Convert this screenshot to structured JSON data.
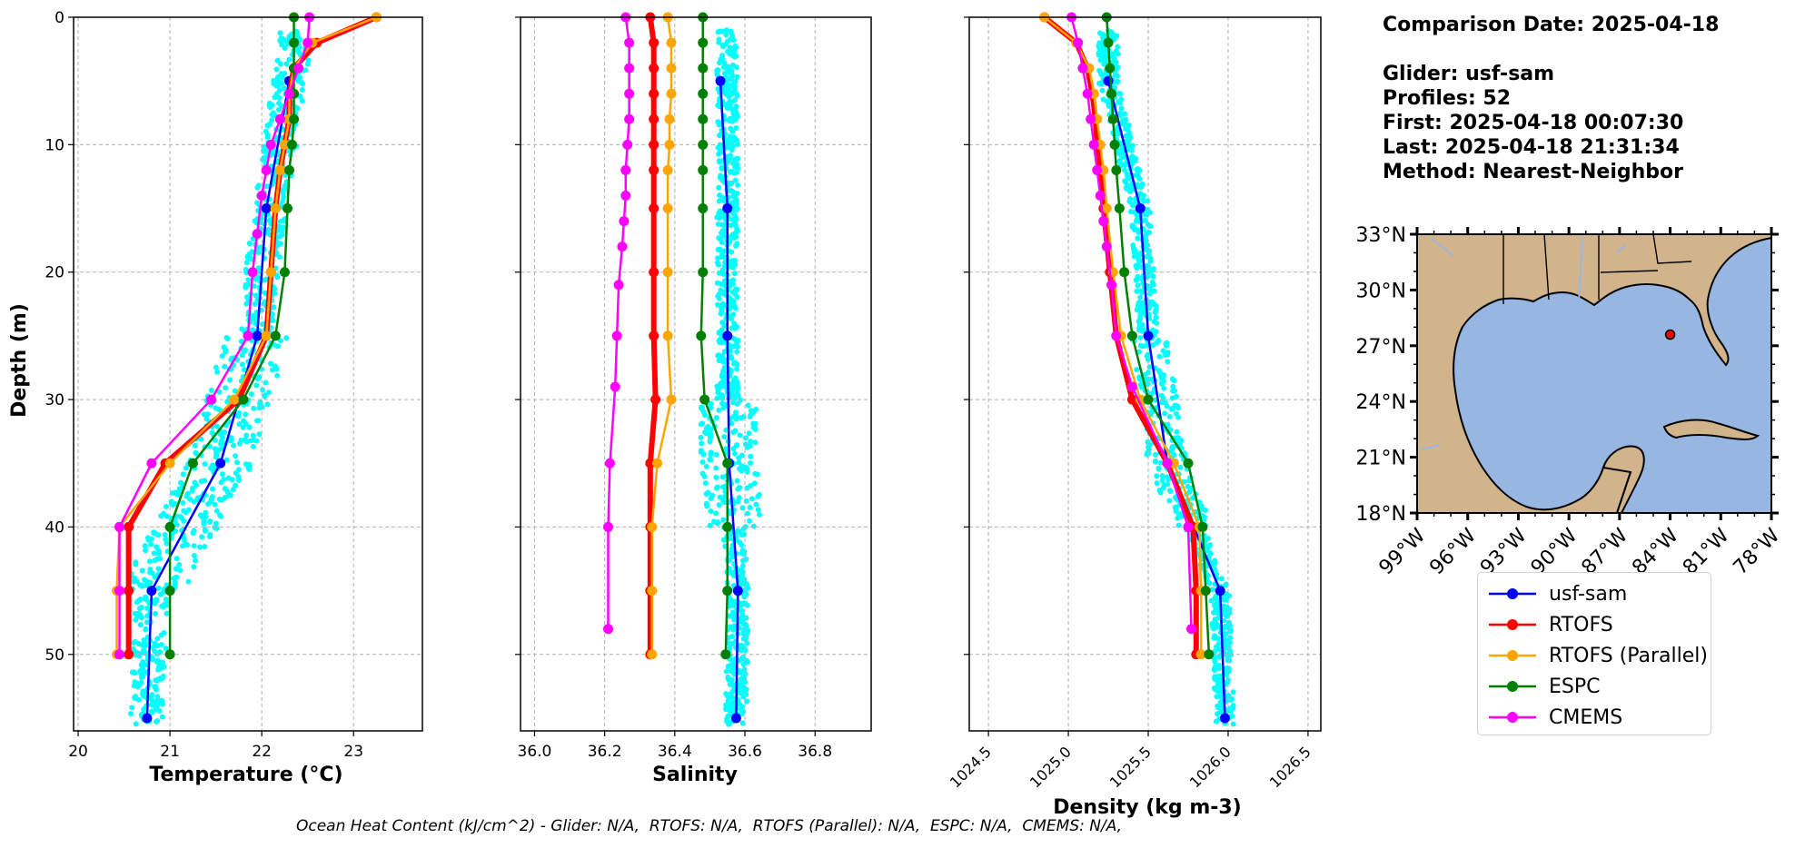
{
  "info": {
    "date_line": "Comparison Date: 2025-04-18",
    "glider_line": "Glider: usf-sam",
    "profiles_line": "Profiles: 52",
    "first_line": "First: 2025-04-18 00:07:30",
    "last_line": "Last: 2025-04-18 21:31:34",
    "method_line": "Method: Nearest-Neighbor"
  },
  "footer": "Ocean Heat Content (kJ/cm^2) - Glider: N/A,  RTOFS: N/A,  RTOFS (Parallel): N/A,  ESPC: N/A,  CMEMS: N/A,",
  "colors": {
    "usf-sam": "#0000ff",
    "RTOFS": "#ff0000",
    "RTOFS (Parallel)": "#ffa500",
    "ESPC": "#008000",
    "CMEMS": "#ff00ff",
    "glider_scatter": "#00ffff",
    "land": "#d2b48c",
    "ocean": "#97b6e1"
  },
  "legend": [
    "usf-sam",
    "RTOFS",
    "RTOFS (Parallel)",
    "ESPC",
    "CMEMS"
  ],
  "chart_data": [
    {
      "type": "line",
      "xlabel": "Temperature (°C)",
      "ylabel": "Depth (m)",
      "xlim": [
        19.95,
        23.75
      ],
      "ylim": [
        56,
        0
      ],
      "xticks": [
        20,
        21,
        22,
        23
      ],
      "yticks": [
        0,
        10,
        20,
        30,
        40,
        50
      ],
      "grid": true,
      "series": [
        {
          "name": "usf-sam",
          "depth": [
            5,
            15,
            25,
            35,
            45,
            55
          ],
          "values": [
            22.3,
            22.05,
            21.95,
            21.55,
            20.8,
            20.75
          ]
        },
        {
          "name": "RTOFS",
          "depth": [
            0,
            2,
            4,
            6,
            8,
            10,
            12,
            15,
            20,
            25,
            30,
            35,
            40,
            45,
            50
          ],
          "values": [
            23.25,
            22.6,
            22.35,
            22.3,
            22.3,
            22.25,
            22.2,
            22.15,
            22.1,
            22.05,
            21.75,
            20.95,
            20.55,
            20.55,
            20.55
          ]
        },
        {
          "name": "RTOFS (Parallel)",
          "depth": [
            0,
            2,
            4,
            6,
            8,
            10,
            12,
            15,
            20,
            25,
            30,
            35,
            40,
            45,
            50
          ],
          "values": [
            23.25,
            22.55,
            22.35,
            22.3,
            22.3,
            22.25,
            22.2,
            22.15,
            22.1,
            22.05,
            21.7,
            21.0,
            20.45,
            20.42,
            20.42
          ]
        },
        {
          "name": "ESPC",
          "depth": [
            0,
            2,
            4,
            6,
            8,
            10,
            12,
            15,
            20,
            25,
            30,
            35,
            40,
            45,
            50
          ],
          "values": [
            22.35,
            22.35,
            22.35,
            22.35,
            22.35,
            22.33,
            22.3,
            22.28,
            22.25,
            22.15,
            21.8,
            21.25,
            21.0,
            21.0,
            21.0
          ]
        },
        {
          "name": "CMEMS",
          "depth": [
            0,
            2,
            4,
            6,
            8,
            10,
            12,
            14,
            17,
            20,
            25,
            30,
            35,
            40,
            45,
            50
          ],
          "values": [
            22.52,
            22.5,
            22.4,
            22.3,
            22.2,
            22.1,
            22.05,
            22.0,
            21.95,
            21.9,
            21.85,
            21.45,
            20.8,
            20.45,
            20.45,
            20.45
          ]
        }
      ]
    },
    {
      "type": "line",
      "xlabel": "Salinity",
      "xlim": [
        35.96,
        36.96
      ],
      "ylim": [
        56,
        0
      ],
      "xticks": [
        36.0,
        36.2,
        36.4,
        36.6,
        36.8
      ],
      "grid": true,
      "series": [
        {
          "name": "usf-sam",
          "depth": [
            5,
            15,
            25,
            35,
            45,
            55
          ],
          "values": [
            36.53,
            36.55,
            36.55,
            36.555,
            36.58,
            36.575
          ]
        },
        {
          "name": "RTOFS",
          "depth": [
            0,
            2,
            4,
            6,
            8,
            10,
            12,
            15,
            20,
            25,
            30,
            35,
            40,
            45,
            50
          ],
          "values": [
            36.33,
            36.34,
            36.34,
            36.34,
            36.34,
            36.34,
            36.34,
            36.34,
            36.34,
            36.34,
            36.345,
            36.33,
            36.33,
            36.33,
            36.33
          ]
        },
        {
          "name": "RTOFS (Parallel)",
          "depth": [
            0,
            2,
            4,
            6,
            8,
            10,
            12,
            15,
            20,
            25,
            30,
            35,
            40,
            45,
            50
          ],
          "values": [
            36.38,
            36.39,
            36.39,
            36.39,
            36.385,
            36.385,
            36.38,
            36.38,
            36.38,
            36.38,
            36.39,
            36.35,
            36.335,
            36.335,
            36.335
          ]
        },
        {
          "name": "ESPC",
          "depth": [
            0,
            2,
            4,
            6,
            8,
            10,
            12,
            15,
            20,
            25,
            30,
            35,
            40,
            45,
            50
          ],
          "values": [
            36.48,
            36.48,
            36.48,
            36.48,
            36.48,
            36.48,
            36.48,
            36.48,
            36.48,
            36.475,
            36.485,
            36.55,
            36.55,
            36.55,
            36.545
          ]
        },
        {
          "name": "CMEMS",
          "depth": [
            0,
            2,
            4,
            6,
            8,
            10,
            12,
            14,
            16,
            18,
            21,
            25,
            29,
            35,
            40,
            48
          ],
          "values": [
            36.26,
            36.27,
            36.27,
            36.27,
            36.27,
            36.265,
            36.26,
            36.26,
            36.255,
            36.25,
            36.24,
            36.235,
            36.23,
            36.215,
            36.21,
            36.21
          ]
        }
      ]
    },
    {
      "type": "line",
      "xlabel": "Density (kg m-3)",
      "xlim": [
        1024.38,
        1026.58
      ],
      "ylim": [
        56,
        0
      ],
      "xticks": [
        1024.5,
        1025.0,
        1025.5,
        1026.0,
        1026.5
      ],
      "grid": true,
      "series": [
        {
          "name": "usf-sam",
          "depth": [
            5,
            15,
            25,
            35,
            45,
            55
          ],
          "values": [
            1025.25,
            1025.45,
            1025.5,
            1025.62,
            1025.95,
            1025.98
          ]
        },
        {
          "name": "RTOFS",
          "depth": [
            0,
            2,
            4,
            6,
            8,
            10,
            12,
            15,
            20,
            25,
            30,
            35,
            40,
            45,
            50
          ],
          "values": [
            1024.85,
            1025.05,
            1025.12,
            1025.15,
            1025.17,
            1025.18,
            1025.2,
            1025.22,
            1025.26,
            1025.3,
            1025.4,
            1025.62,
            1025.78,
            1025.8,
            1025.8
          ]
        },
        {
          "name": "RTOFS (Parallel)",
          "depth": [
            0,
            2,
            4,
            6,
            8,
            10,
            12,
            15,
            20,
            25,
            30,
            35,
            40,
            45,
            50
          ],
          "values": [
            1024.85,
            1025.05,
            1025.13,
            1025.16,
            1025.18,
            1025.2,
            1025.22,
            1025.24,
            1025.28,
            1025.33,
            1025.45,
            1025.66,
            1025.82,
            1025.83,
            1025.83
          ]
        },
        {
          "name": "ESPC",
          "depth": [
            0,
            2,
            4,
            6,
            8,
            10,
            12,
            15,
            20,
            25,
            30,
            35,
            40,
            45,
            50
          ],
          "values": [
            1025.24,
            1025.25,
            1025.26,
            1025.27,
            1025.28,
            1025.29,
            1025.3,
            1025.32,
            1025.35,
            1025.4,
            1025.5,
            1025.75,
            1025.84,
            1025.86,
            1025.88
          ]
        },
        {
          "name": "CMEMS",
          "depth": [
            0,
            2,
            4,
            6,
            8,
            10,
            12,
            14,
            16,
            18,
            21,
            25,
            29,
            35,
            40,
            48
          ],
          "values": [
            1025.02,
            1025.06,
            1025.09,
            1025.12,
            1025.14,
            1025.16,
            1025.18,
            1025.2,
            1025.22,
            1025.24,
            1025.27,
            1025.3,
            1025.4,
            1025.62,
            1025.75,
            1025.77
          ]
        }
      ]
    }
  ],
  "map": {
    "lat_ticks": [
      "33°N",
      "30°N",
      "27°N",
      "24°N",
      "21°N",
      "18°N"
    ],
    "lon_ticks": [
      "99°W",
      "96°W",
      "93°W",
      "90°W",
      "87°W",
      "84°W",
      "81°W",
      "78°W"
    ],
    "glider_position": {
      "lon": -84.0,
      "lat": 27.6
    }
  }
}
